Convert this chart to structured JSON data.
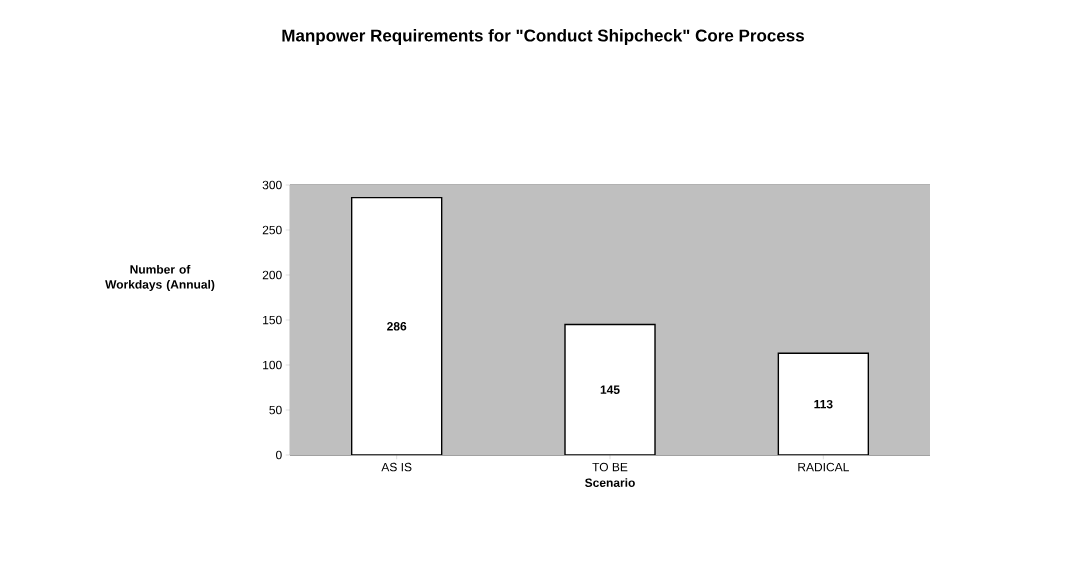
{
  "chart_data": {
    "type": "bar",
    "title": "Manpower Requirements for \"Conduct Shipcheck\" Core Process",
    "xlabel": "Scenario",
    "ylabel": "Number of Workdays (Annual)",
    "categories": [
      "AS IS",
      "TO BE",
      "RADICAL"
    ],
    "values": [
      286,
      145,
      113
    ],
    "color": "#ffffff",
    "ylim": [
      0,
      300
    ],
    "yticks": [
      0,
      50,
      100,
      150,
      200,
      250,
      300
    ],
    "grid": "y",
    "data_labels": true
  }
}
